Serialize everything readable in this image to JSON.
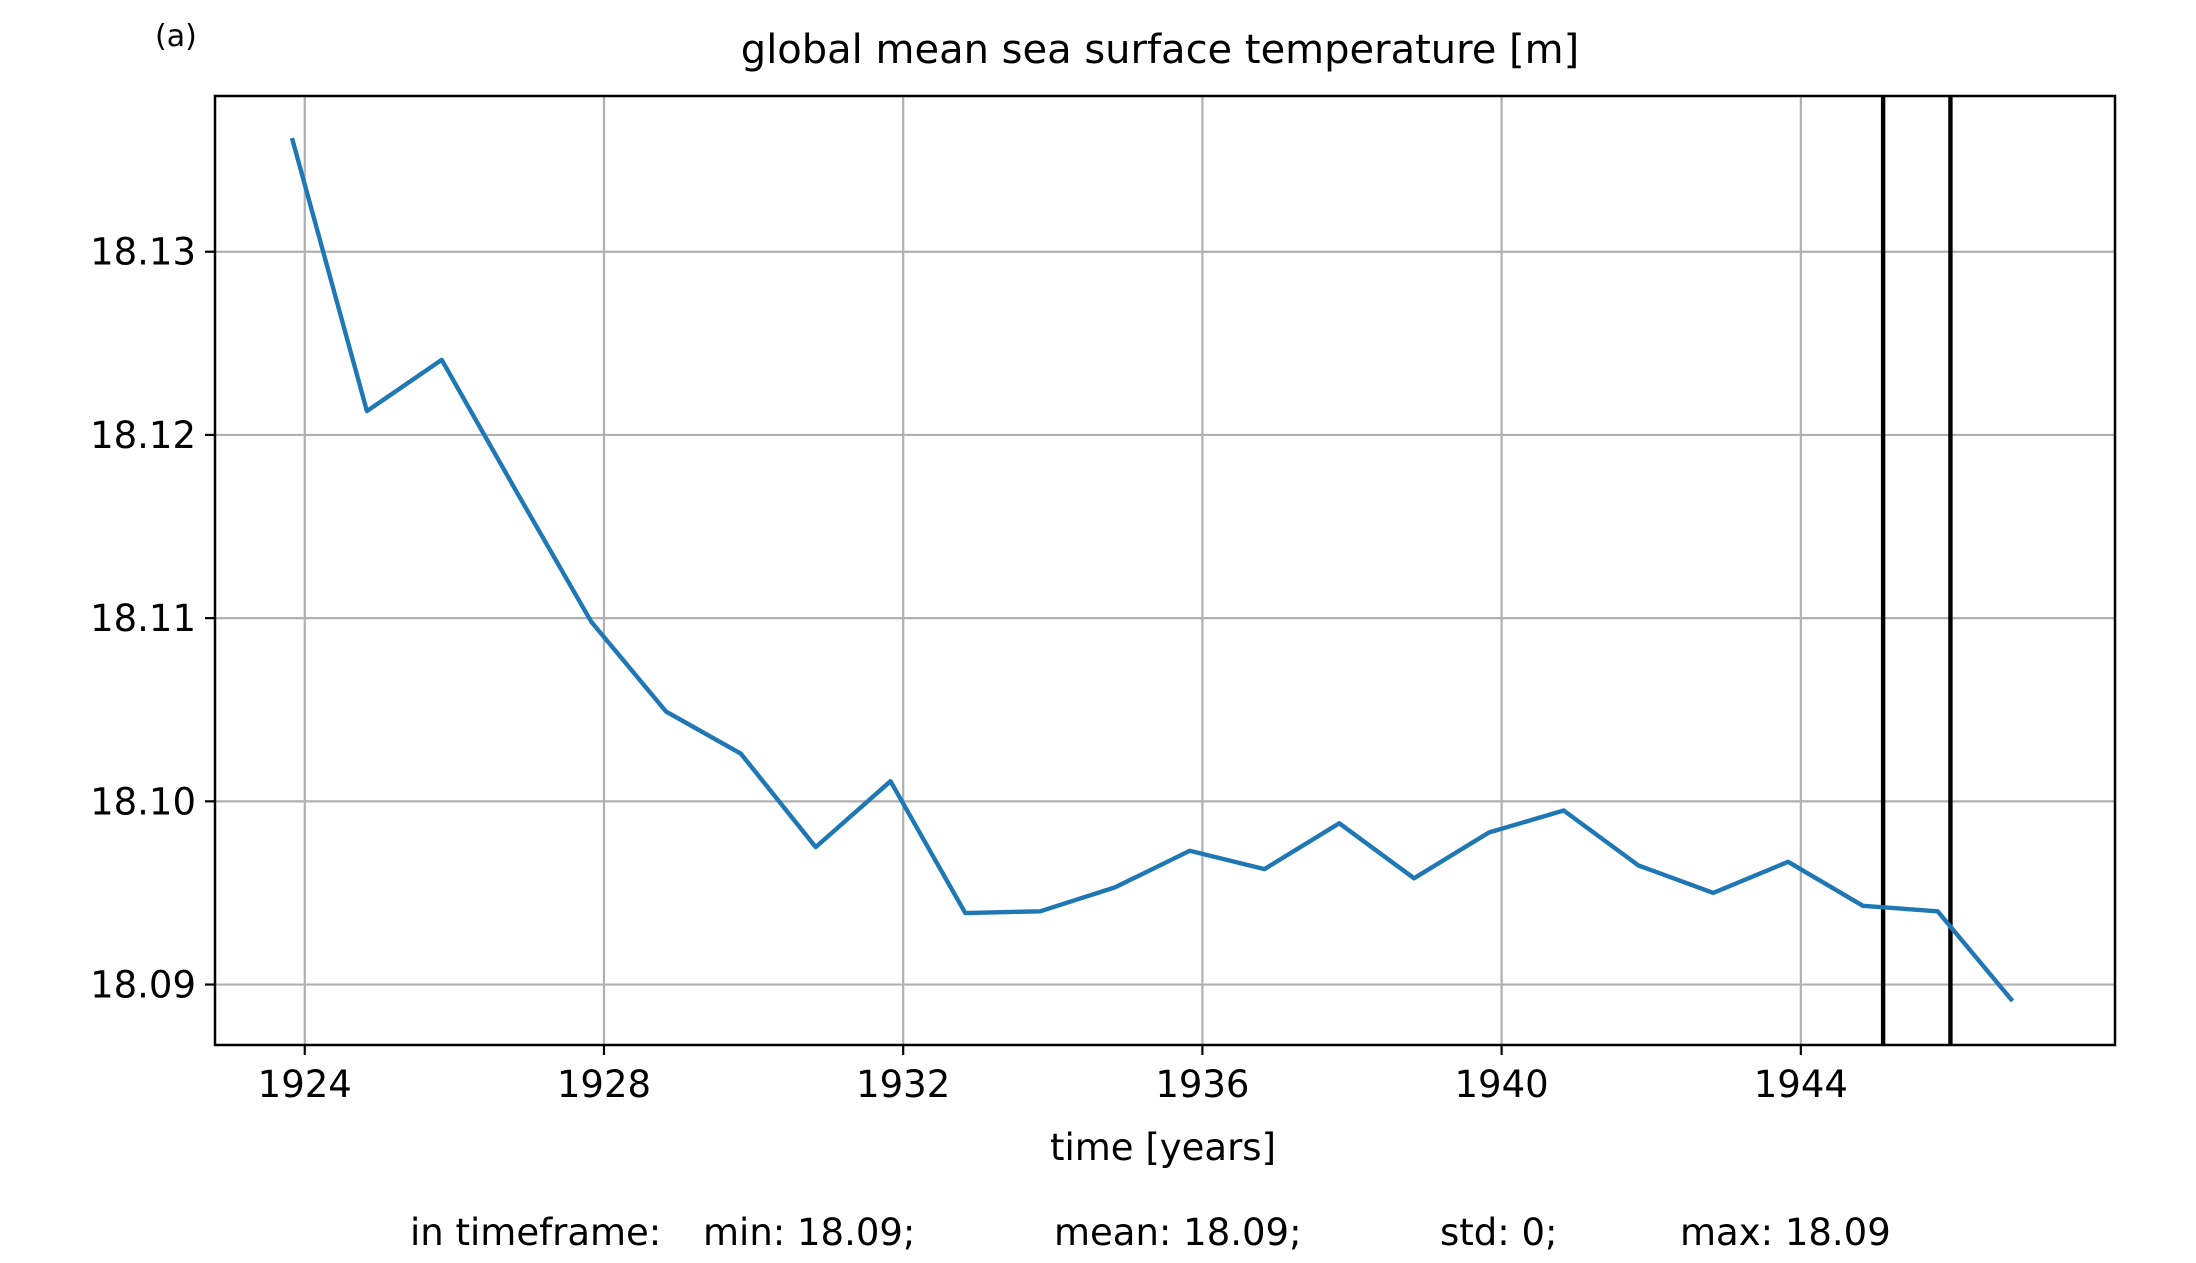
{
  "panel_label": "(a)",
  "footer": {
    "prefix": "in timeframe:",
    "min": "min: 18.09;",
    "mean": "mean: 18.09;",
    "std": "std: 0;",
    "max": "max: 18.09"
  },
  "chart_data": {
    "type": "line",
    "title": "global mean sea surface temperature [m]",
    "xlabel": "time [years]",
    "ylabel": "",
    "xlim": [
      1922.8,
      1948.2
    ],
    "ylim": [
      18.0867,
      18.1385
    ],
    "xticks": [
      1924,
      1928,
      1932,
      1936,
      1940,
      1944
    ],
    "yticks": [
      18.09,
      18.1,
      18.11,
      18.12,
      18.13
    ],
    "ytick_labels": [
      "18.09",
      "18.10",
      "18.11",
      "18.12",
      "18.13"
    ],
    "grid": true,
    "legend": "none",
    "vlines": [
      1945.1,
      1946.0
    ],
    "vline_color": "#000000",
    "series": [
      {
        "color": "#1f77b4",
        "x": [
          1923.83,
          1924.83,
          1925.83,
          1926.83,
          1927.83,
          1928.83,
          1929.83,
          1930.83,
          1931.83,
          1932.83,
          1933.83,
          1934.83,
          1935.83,
          1936.83,
          1937.83,
          1938.83,
          1939.83,
          1940.83,
          1941.83,
          1942.83,
          1943.83,
          1944.83,
          1945.83,
          1946.83
        ],
        "y": [
          18.1362,
          18.1213,
          18.1241,
          18.1169,
          18.1098,
          18.1049,
          18.1026,
          18.0975,
          18.1011,
          18.0939,
          18.094,
          18.0953,
          18.0973,
          18.0963,
          18.0988,
          18.0958,
          18.0983,
          18.0995,
          18.0965,
          18.095,
          18.0967,
          18.0943,
          18.094,
          18.0891
        ]
      }
    ]
  }
}
